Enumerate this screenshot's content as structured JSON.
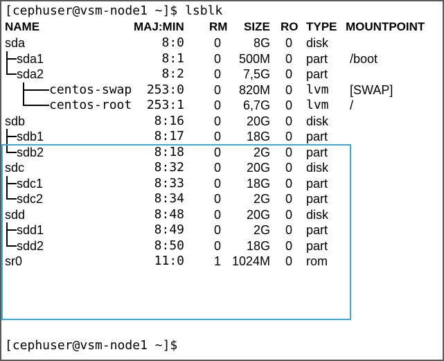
{
  "terminal": {
    "command_prompt": "[cephuser@vsm-node1 ~]$ lsblk",
    "final_prompt": "[cephuser@vsm-node1 ~]$",
    "headers": {
      "name": "NAME",
      "majmin": "MAJ:MIN",
      "rm": "RM",
      "size": "SIZE",
      "ro": "RO",
      "type": "TYPE",
      "mountpoint": "MOUNTPOINT"
    },
    "rows": [
      {
        "name": "sda",
        "majmin": "8:0",
        "rm": "0",
        "size": "8G",
        "ro": "0",
        "type": "disk",
        "mountpoint": ""
      },
      {
        "name": "sda1",
        "majmin": "8:1",
        "rm": "0",
        "size": "500M",
        "ro": "0",
        "type": "part",
        "mountpoint": "/boot"
      },
      {
        "name": "sda2",
        "majmin": "8:2",
        "rm": "0",
        "size": "7,5G",
        "ro": "0",
        "type": "part",
        "mountpoint": ""
      },
      {
        "name": "centos-swap",
        "majmin": "253:0",
        "rm": "0",
        "size": "820M",
        "ro": "0",
        "type": "lvm",
        "mountpoint": "[SWAP]"
      },
      {
        "name": "centos-root",
        "majmin": "253:1",
        "rm": "0",
        "size": "6,7G",
        "ro": "0",
        "type": "lvm",
        "mountpoint": "/"
      },
      {
        "name": "sdb",
        "majmin": "8:16",
        "rm": "0",
        "size": "20G",
        "ro": "0",
        "type": "disk",
        "mountpoint": ""
      },
      {
        "name": "sdb1",
        "majmin": "8:17",
        "rm": "0",
        "size": "18G",
        "ro": "0",
        "type": "part",
        "mountpoint": ""
      },
      {
        "name": "sdb2",
        "majmin": "8:18",
        "rm": "0",
        "size": "2G",
        "ro": "0",
        "type": "part",
        "mountpoint": ""
      },
      {
        "name": "sdc",
        "majmin": "8:32",
        "rm": "0",
        "size": "20G",
        "ro": "0",
        "type": "disk",
        "mountpoint": ""
      },
      {
        "name": "sdc1",
        "majmin": "8:33",
        "rm": "0",
        "size": "18G",
        "ro": "0",
        "type": "part",
        "mountpoint": ""
      },
      {
        "name": "sdc2",
        "majmin": "8:34",
        "rm": "0",
        "size": "2G",
        "ro": "0",
        "type": "part",
        "mountpoint": ""
      },
      {
        "name": "sdd",
        "majmin": "8:48",
        "rm": "0",
        "size": "20G",
        "ro": "0",
        "type": "disk",
        "mountpoint": ""
      },
      {
        "name": "sdd1",
        "majmin": "8:49",
        "rm": "0",
        "size": "2G",
        "ro": "0",
        "type": "part",
        "mountpoint": ""
      },
      {
        "name": "sdd2",
        "majmin": "8:50",
        "rm": "0",
        "size": "18G",
        "ro": "0",
        "type": "part",
        "mountpoint": ""
      },
      {
        "name": "sr0",
        "majmin": "11:0",
        "rm": "1",
        "size": "1024M",
        "ro": "0",
        "type": "rom",
        "mountpoint": ""
      }
    ],
    "highlight_color": "#3fa9d8"
  }
}
